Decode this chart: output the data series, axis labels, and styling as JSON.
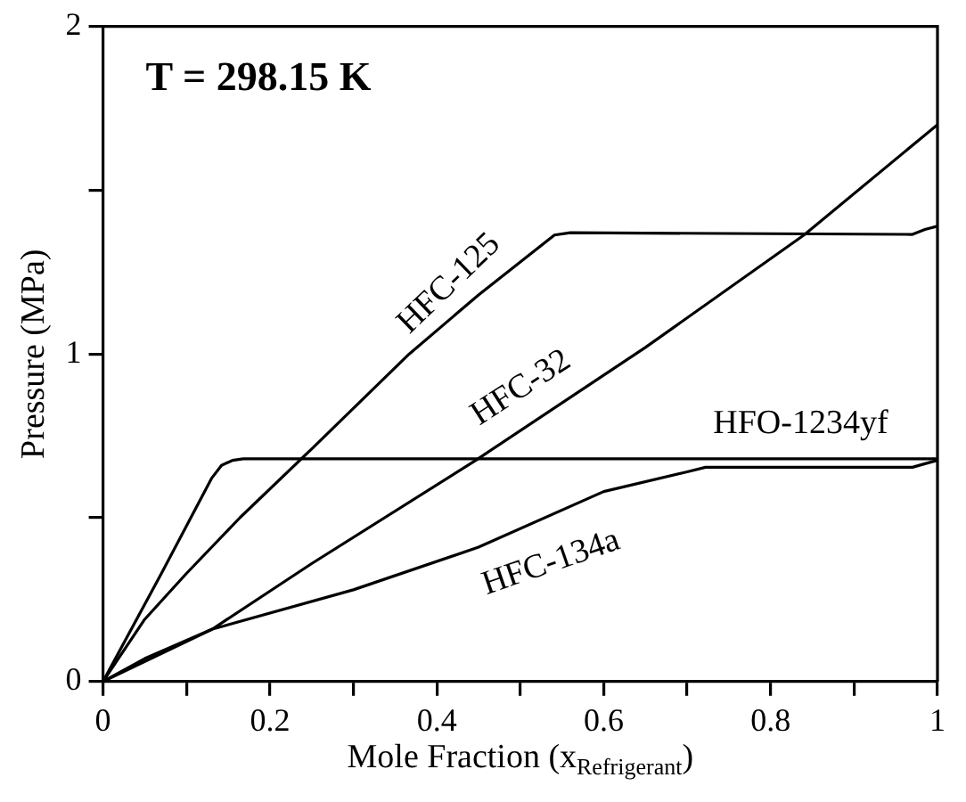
{
  "chart_data": {
    "type": "line",
    "xlabel": "Mole Fraction (x$_{Refrigerant}$)",
    "ylabel": "Pressure (MPa)",
    "annotations": [
      "T = 298.15 K"
    ],
    "xlim": [
      0,
      1
    ],
    "ylim": [
      0,
      2
    ],
    "xticks": [
      0,
      {
        "value": 0.1,
        "label": null
      },
      0.2,
      {
        "value": 0.3,
        "label": null
      },
      0.4,
      {
        "value": 0.5,
        "label": null
      },
      0.6,
      {
        "value": 0.7,
        "label": null
      },
      0.8,
      {
        "value": 0.9,
        "label": null
      },
      1
    ],
    "yticks": [
      0,
      {
        "value": 0.5,
        "label": null
      },
      1,
      {
        "value": 1.5,
        "label": null
      },
      2
    ],
    "grid": false,
    "legend": false,
    "marker": "none",
    "line_style": "solid",
    "series": [
      {
        "name": "HFC-125",
        "color": "#000000",
        "x": [
          0,
          0.05,
          0.1,
          0.164,
          0.25,
          0.367,
          0.45,
          0.541,
          0.56,
          0.97,
          0.985,
          1
        ],
        "values": [
          0,
          0.19,
          0.33,
          0.5,
          0.71,
          1.0,
          1.18,
          1.363,
          1.37,
          1.365,
          1.38,
          1.39
        ]
      },
      {
        "name": "HFC-32",
        "color": "#000000",
        "x": [
          0,
          0.131,
          0.25,
          0.447,
          0.65,
          0.84,
          1
        ],
        "values": [
          0,
          0.16,
          0.36,
          0.676,
          1.02,
          1.363,
          1.7
        ]
      },
      {
        "name": "HFO-1234yf",
        "color": "#000000",
        "x": [
          0,
          0.07,
          0.13,
          0.142,
          0.155,
          0.168,
          1
        ],
        "values": [
          0,
          0.33,
          0.62,
          0.66,
          0.675,
          0.68,
          0.68
        ]
      },
      {
        "name": "HFC-134a",
        "color": "#000000",
        "x": [
          0,
          0.05,
          0.131,
          0.3,
          0.45,
          0.6,
          0.7,
          0.722,
          0.97,
          0.985,
          1
        ],
        "values": [
          0,
          0.07,
          0.16,
          0.28,
          0.41,
          0.58,
          0.64,
          0.654,
          0.654,
          0.665,
          0.675
        ]
      }
    ]
  }
}
